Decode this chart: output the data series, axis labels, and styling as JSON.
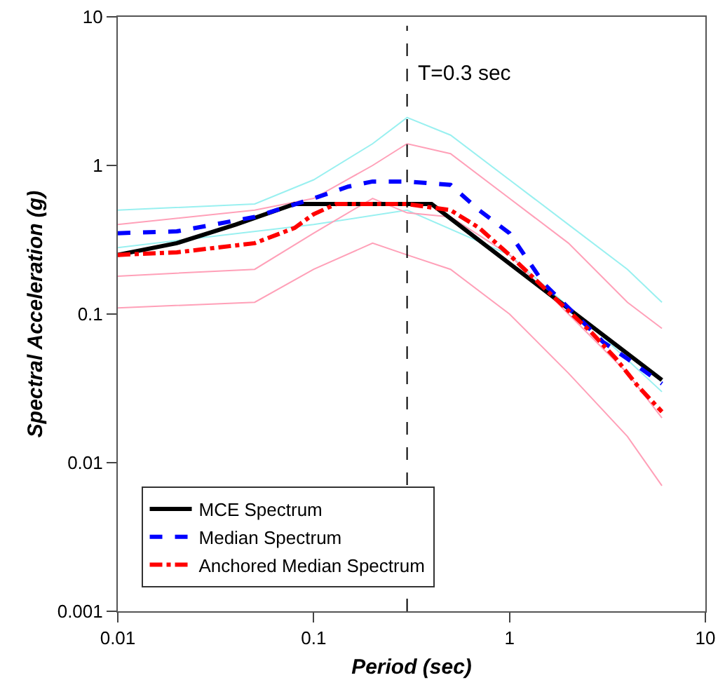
{
  "chart_data": {
    "type": "line",
    "xlabel": "Period (sec)",
    "ylabel": "Spectral Acceleration (g)",
    "log": "xy",
    "xlim": [
      0.01,
      10
    ],
    "ylim": [
      0.001,
      10
    ],
    "xticks": [
      0.01,
      0.1,
      1,
      10
    ],
    "yticks": [
      0.001,
      0.01,
      0.1,
      1,
      10
    ],
    "grid": false,
    "legend": "bottom left",
    "marker": "none",
    "ref_lines": [
      {
        "axis": "x",
        "value": 0.3,
        "label": "T=0.3 sec",
        "color": "#000000",
        "line_style": "dashed"
      }
    ],
    "series": [
      {
        "color": "#99f0f0",
        "line_style": "solid",
        "x": [
          0.01,
          0.05,
          0.1,
          0.2,
          0.3,
          0.5,
          1,
          2,
          4,
          6
        ],
        "values": [
          0.5,
          0.55,
          0.8,
          1.4,
          2.1,
          1.6,
          0.8,
          0.4,
          0.2,
          0.12
        ]
      },
      {
        "color": "#99f0f0",
        "line_style": "solid",
        "x": [
          0.01,
          0.1,
          0.3,
          1,
          3,
          6
        ],
        "values": [
          0.28,
          0.4,
          0.5,
          0.25,
          0.07,
          0.03
        ]
      },
      {
        "color": "#ffa0b8",
        "line_style": "solid",
        "x": [
          0.01,
          0.05,
          0.1,
          0.2,
          0.3,
          0.5,
          1,
          2,
          4,
          6
        ],
        "values": [
          0.4,
          0.5,
          0.6,
          1.0,
          1.4,
          1.2,
          0.6,
          0.3,
          0.12,
          0.08
        ]
      },
      {
        "color": "#ffa0b8",
        "line_style": "solid",
        "x": [
          0.01,
          0.05,
          0.1,
          0.2,
          0.3,
          0.5,
          1,
          2,
          4,
          6
        ],
        "values": [
          0.18,
          0.2,
          0.35,
          0.6,
          0.48,
          0.45,
          0.25,
          0.1,
          0.04,
          0.02
        ]
      },
      {
        "color": "#ffa0b8",
        "line_style": "solid",
        "x": [
          0.01,
          0.05,
          0.1,
          0.2,
          0.3,
          0.5,
          1,
          2,
          4,
          6
        ],
        "values": [
          0.11,
          0.12,
          0.2,
          0.3,
          0.25,
          0.2,
          0.1,
          0.04,
          0.015,
          0.007
        ]
      },
      {
        "name": "MCE Spectrum",
        "color": "#000000",
        "line_style": "solid",
        "x": [
          0.01,
          0.02,
          0.04,
          0.08,
          0.4,
          6
        ],
        "values": [
          0.25,
          0.3,
          0.4,
          0.55,
          0.55,
          0.036
        ]
      },
      {
        "name": "Median Spectrum",
        "color": "#0000ff",
        "line_style": "dashed",
        "x": [
          0.01,
          0.02,
          0.05,
          0.1,
          0.15,
          0.2,
          0.3,
          0.5,
          0.7,
          1,
          1.5,
          2,
          3,
          4,
          6
        ],
        "values": [
          0.35,
          0.36,
          0.45,
          0.6,
          0.72,
          0.78,
          0.78,
          0.74,
          0.5,
          0.35,
          0.16,
          0.11,
          0.065,
          0.05,
          0.034
        ]
      },
      {
        "name": "Anchored Median Spectrum",
        "color": "#ff0000",
        "line_style": "dashdot",
        "x": [
          0.01,
          0.02,
          0.05,
          0.08,
          0.1,
          0.13,
          0.3,
          0.5,
          0.7,
          1,
          1.5,
          2.6,
          3.5,
          4.5,
          6
        ],
        "values": [
          0.25,
          0.26,
          0.3,
          0.38,
          0.47,
          0.55,
          0.55,
          0.5,
          0.38,
          0.25,
          0.15,
          0.076,
          0.05,
          0.033,
          0.022
        ]
      }
    ]
  }
}
